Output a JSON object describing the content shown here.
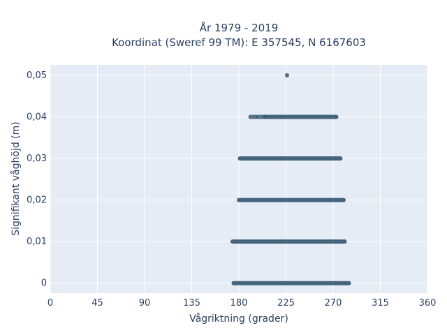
{
  "chart_data": {
    "type": "scatter",
    "title_line1": "År 1979 - 2019",
    "title_line2": "Koordinat (Sweref 99 TM): E 357545, N 6167603",
    "xlabel": "Vågriktning (grader)",
    "ylabel": "Signifikant våghöjd (m)",
    "xlim": [
      0,
      360
    ],
    "ylim": [
      -0.0024,
      0.0525
    ],
    "xticks": [
      0,
      45,
      90,
      135,
      180,
      225,
      270,
      315,
      360
    ],
    "xtick_labels": [
      "0",
      "45",
      "90",
      "135",
      "180",
      "225",
      "270",
      "315",
      "360"
    ],
    "yticks": [
      0,
      0.01,
      0.02,
      0.03,
      0.04,
      0.05
    ],
    "ytick_labels": [
      "0",
      "0,01",
      "0,02",
      "0,03",
      "0,04",
      "0,05"
    ],
    "grid": true,
    "marker_color": "#34566f",
    "bands": [
      {
        "y": 0,
        "x_min": 175,
        "x_max": 285
      },
      {
        "y": 0.01,
        "x_min": 174,
        "x_max": 281
      },
      {
        "y": 0.02,
        "x_min": 180,
        "x_max": 280
      },
      {
        "y": 0.03,
        "x_min": 181,
        "x_max": 277
      },
      {
        "y": 0.04,
        "x_min": 191,
        "x_max": 273,
        "sparse": [
          [
            191,
            196
          ],
          [
            198,
            204
          ]
        ]
      }
    ],
    "points": [
      {
        "x": 226,
        "y": 0.05
      }
    ]
  }
}
